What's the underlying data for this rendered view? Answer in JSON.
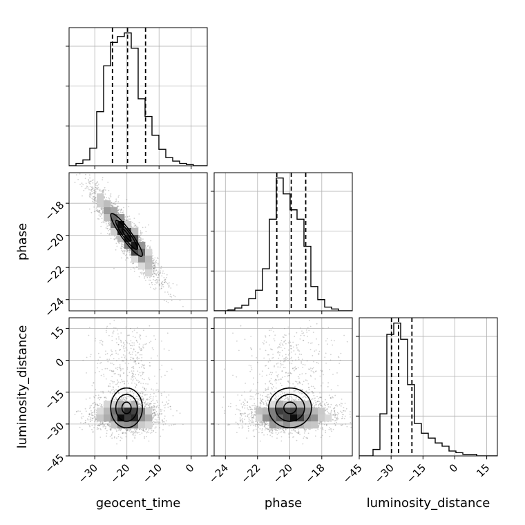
{
  "chart_data": {
    "type": "corner",
    "parameters": [
      "geocent_time",
      "phase",
      "luminosity_distance"
    ],
    "axis_labels": {
      "x": [
        "geocent_time",
        "phase",
        "luminosity_distance"
      ],
      "y": [
        "phase",
        "luminosity_distance"
      ]
    },
    "ranges": {
      "geocent_time": [
        -38,
        5
      ],
      "phase": [
        -24.7,
        -16.1
      ],
      "luminosity_distance": [
        -45,
        20
      ]
    },
    "ticks": {
      "geocent_time": {
        "values": [
          -30,
          -20,
          -10,
          0
        ],
        "labels": [
          "−30",
          "−20",
          "−10",
          "0"
        ]
      },
      "phase": {
        "values": [
          -24,
          -22,
          -20,
          -18
        ],
        "labels": [
          "−24",
          "−22",
          "−20",
          "−18"
        ]
      },
      "luminosity_distance_x": {
        "values": [
          -45,
          -30,
          -15,
          0,
          15
        ],
        "labels": [
          "−45",
          "−30",
          "−15",
          "0",
          "15"
        ]
      },
      "luminosity_distance_y": {
        "values": [
          -45,
          -30,
          -15,
          0,
          15
        ],
        "labels": [
          "−45",
          "−30",
          "−15",
          "0",
          "15"
        ]
      }
    },
    "quantiles": {
      "geocent_time": [
        -24.5,
        -19.8,
        -14.2
      ],
      "phase": [
        -20.8,
        -19.9,
        -19.0
      ],
      "luminosity_distance": [
        -29.8,
        -26.5,
        -20.2
      ]
    },
    "histograms": {
      "geocent_time": {
        "edges": [
          -38,
          -35.85,
          -33.7,
          -31.55,
          -29.4,
          -27.25,
          -25.1,
          -22.95,
          -20.8,
          -18.65,
          -16.5,
          -14.35,
          -12.2,
          -10.05,
          -7.9,
          -5.75,
          -3.6,
          -1.45,
          0.7,
          2.85,
          5
        ],
        "counts": [
          0,
          2,
          5,
          15,
          46,
          85,
          105,
          110,
          113,
          100,
          57,
          42,
          26,
          14,
          7,
          4,
          2,
          1,
          0,
          0
        ]
      },
      "phase": {
        "edges": [
          -24.7,
          -24.27,
          -23.84,
          -23.41,
          -22.98,
          -22.55,
          -22.12,
          -21.69,
          -21.26,
          -20.83,
          -20.4,
          -19.97,
          -19.54,
          -19.11,
          -18.68,
          -18.25,
          -17.82,
          -17.39,
          -16.96,
          -16.53,
          -16.1
        ],
        "counts": [
          0,
          0,
          1,
          3,
          6,
          13,
          22,
          45,
          98,
          142,
          125,
          108,
          98,
          69,
          26,
          12,
          4,
          2,
          0,
          0
        ]
      },
      "luminosity_distance": {
        "edges": [
          -45,
          -41.75,
          -38.5,
          -35.25,
          -32,
          -28.75,
          -25.5,
          -22.25,
          -19,
          -15.75,
          -12.5,
          -9.25,
          -6,
          -2.75,
          0.5,
          3.75,
          7,
          10.25,
          13.5,
          16.75,
          20
        ],
        "counts": [
          0,
          0,
          4,
          26,
          75,
          82,
          72,
          44,
          20,
          14,
          11,
          8,
          6,
          3,
          2,
          1,
          1,
          0,
          0,
          0
        ]
      }
    },
    "grid": true,
    "legend": "none"
  }
}
